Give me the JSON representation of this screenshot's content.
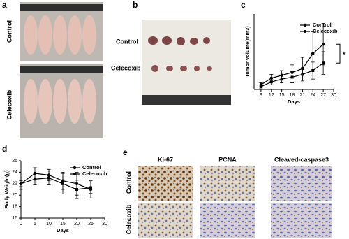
{
  "panels": {
    "a": {
      "label": "a",
      "rows": [
        "Control",
        "Celecoxib"
      ]
    },
    "b": {
      "label": "b",
      "rows": [
        "Control",
        "Celecoxib"
      ]
    },
    "e": {
      "label": "e",
      "columns": [
        "Ki-67",
        "PCNA",
        "Cleaved-caspase3"
      ],
      "rows": [
        "Control",
        "Celecoxib"
      ]
    }
  },
  "chart_data": [
    {
      "type": "line",
      "panel": "c",
      "y_label": "Tumor volume(mm3)",
      "x_label": "Days",
      "x": [
        9,
        12,
        15,
        18,
        21,
        24,
        27
      ],
      "xlim": [
        7,
        30
      ],
      "xticks": [
        9,
        12,
        15,
        18,
        21,
        24,
        27,
        30
      ],
      "ylim": [
        0,
        800
      ],
      "series": [
        {
          "name": "Control",
          "color": "#000000",
          "marker": "circle",
          "values": [
            50,
            120,
            150,
            180,
            220,
            380,
            480
          ],
          "errors": [
            20,
            40,
            50,
            80,
            120,
            230,
            220
          ]
        },
        {
          "name": "Celecoxib",
          "color": "#000000",
          "marker": "square",
          "values": [
            30,
            80,
            110,
            130,
            160,
            200,
            280
          ],
          "errors": [
            15,
            30,
            40,
            60,
            70,
            90,
            120
          ]
        }
      ],
      "annotation": "*"
    },
    {
      "type": "line",
      "panel": "d",
      "y_label": "Body Weight(g)",
      "x_label": "Days",
      "x": [
        0,
        5,
        10,
        15,
        20,
        25
      ],
      "xlim": [
        0,
        30
      ],
      "xticks": [
        0,
        5,
        10,
        15,
        20,
        25,
        30
      ],
      "ylim": [
        16,
        26
      ],
      "yticks": [
        16,
        18,
        20,
        22,
        24,
        26
      ],
      "series": [
        {
          "name": "Control",
          "color": "#000000",
          "marker": "circle",
          "values": [
            22,
            23.8,
            23.5,
            22.5,
            22,
            21
          ],
          "errors": [
            0.5,
            1,
            1,
            1.5,
            2,
            1.5
          ]
        },
        {
          "name": "Celecoxib",
          "color": "#000000",
          "marker": "square",
          "values": [
            22,
            22.8,
            23,
            22,
            21,
            21.3
          ],
          "errors": [
            1,
            1,
            1.2,
            1.8,
            1.6,
            1
          ]
        }
      ]
    }
  ]
}
